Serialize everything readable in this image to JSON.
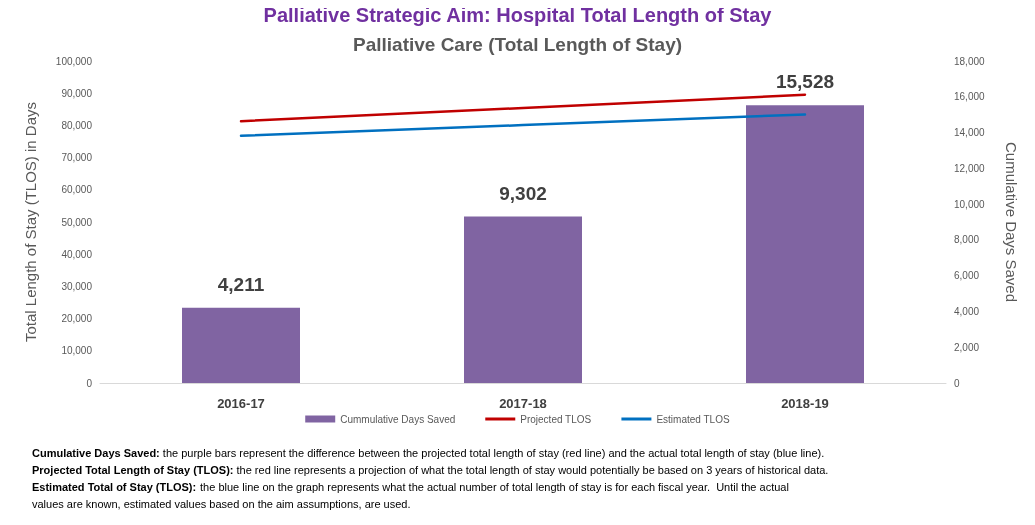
{
  "chart_data": {
    "type": "bar",
    "title": "Palliative Strategic Aim: Hospital Total Length of Stay",
    "subtitle": "Palliative Care (Total Length of Stay)",
    "ylabel": "Total Length of Stay (TLOS) in Days",
    "y2label": "Cumulative Days Saved",
    "categories": [
      "2016-17",
      "2017-18",
      "2018-19"
    ],
    "series": [
      {
        "name": "Cummulative Days Saved",
        "axis": "y2",
        "color": "#8064a2",
        "values": [
          4211,
          9302,
          15528
        ],
        "value_labels": [
          "4,211",
          "9,302",
          "15,528"
        ]
      },
      {
        "name": "Projected TLOS",
        "type": "line",
        "color": "#c00000",
        "values": [
          81300,
          85400,
          89500
        ]
      },
      {
        "name": "Estimated TLOS",
        "type": "line",
        "color": "#0070c0",
        "values": [
          76800,
          80100,
          83400
        ]
      }
    ],
    "ylim": [
      0,
      100000
    ],
    "yticks": [
      0,
      {
        "value": 10000,
        "label": "10,000"
      },
      {
        "value": 20000,
        "label": "20,000"
      },
      {
        "value": 30000,
        "label": "30,000"
      },
      {
        "value": 40000,
        "label": "40,000"
      },
      {
        "value": 50000,
        "label": "50,000"
      },
      {
        "value": 60000,
        "label": "60,000"
      },
      {
        "value": 70000,
        "label": "70,000"
      },
      {
        "value": 80000,
        "label": "80,000"
      },
      {
        "value": 90000,
        "label": "90,000"
      },
      {
        "value": 100000,
        "label": "100,000"
      }
    ],
    "y2lim": [
      0,
      18000
    ],
    "y2ticks": [
      0,
      {
        "value": 2000,
        "label": "2,000"
      },
      {
        "value": 4000,
        "label": "4,000"
      },
      {
        "value": 6000,
        "label": "6,000"
      },
      {
        "value": 8000,
        "label": "8,000"
      },
      {
        "value": 10000,
        "label": "10,000"
      },
      {
        "value": 12000,
        "label": "12,000"
      },
      {
        "value": 14000,
        "label": "14,000"
      },
      {
        "value": 16000,
        "label": "16,000"
      },
      {
        "value": 18000,
        "label": "18,000"
      }
    ],
    "grid": false,
    "legend": "bottom",
    "marker": "none",
    "line_style": "solid",
    "annotations": [
      "Cumulative Days Saved: the purple bars represent the difference between the projected total length of stay (red line) and the actual total length of stay (blue line).",
      "Projected Total Length of Stay (TLOS): the red line represents a projection of what the total length of stay would potentially be based on 3 years of historical data.",
      "Estimated Total of Stay (TLOS): the blue line on the graph represents what the actual number of total length of stay is for each fiscal year.  Until the actual values are known, estimated values based on the aim assumptions, are used."
    ]
  }
}
